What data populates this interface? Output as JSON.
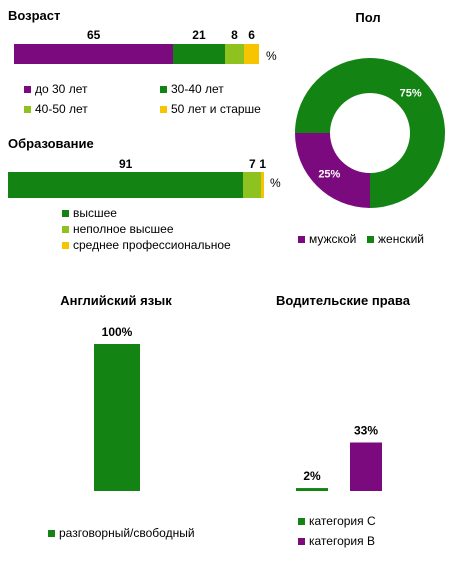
{
  "colors": {
    "purple": "#7b0a7e",
    "green": "#138413",
    "lightgreen": "#8dc21f",
    "yellow": "#f6c500"
  },
  "chart_data": [
    {
      "id": "age",
      "type": "bar",
      "title": "Возраст",
      "unit": "%",
      "orientation": "horizontal-stacked",
      "series": [
        {
          "name": "до 30 лет",
          "value": 65,
          "color": "#7b0a7e"
        },
        {
          "name": "30-40  лет",
          "value": 21,
          "color": "#138413"
        },
        {
          "name": "40-50  лет",
          "value": 8,
          "color": "#8dc21f"
        },
        {
          "name": "50 лет  и старше",
          "value": 6,
          "color": "#f6c500"
        }
      ]
    },
    {
      "id": "education",
      "type": "bar",
      "title": "Образование",
      "unit": "%",
      "orientation": "horizontal-stacked",
      "series": [
        {
          "name": "высшее",
          "value": 91,
          "color": "#138413"
        },
        {
          "name": "неполное высшее",
          "value": 7,
          "color": "#8dc21f"
        },
        {
          "name": "среднее профессиональное",
          "value": 1,
          "color": "#f6c500"
        }
      ]
    },
    {
      "id": "gender",
      "type": "pie",
      "title": "Пол",
      "donut": true,
      "slices": [
        {
          "name": "мужской",
          "value": 25,
          "label": "25%",
          "color": "#7b0a7e"
        },
        {
          "name": "женский",
          "value": 75,
          "label": "75%",
          "color": "#138413"
        }
      ]
    },
    {
      "id": "english",
      "type": "bar",
      "title": "Английский язык",
      "ylim": [
        0,
        100
      ],
      "series": [
        {
          "name": "разговорный/свободный",
          "value": 100,
          "label": "100%",
          "color": "#138413"
        }
      ]
    },
    {
      "id": "license",
      "type": "bar",
      "title": "Водительские права",
      "ylim": [
        0,
        100
      ],
      "series": [
        {
          "name": "категория  С",
          "value": 2,
          "label": "2%",
          "color": "#138413"
        },
        {
          "name": "категория  В",
          "value": 33,
          "label": "33%",
          "color": "#7b0a7e"
        }
      ]
    }
  ]
}
